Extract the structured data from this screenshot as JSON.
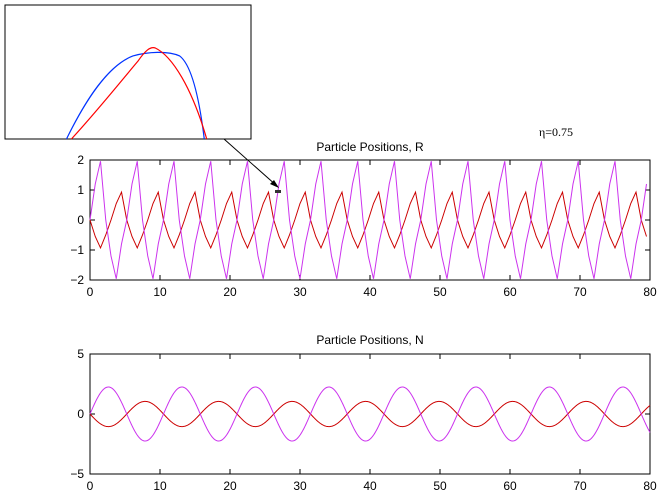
{
  "chart_data": [
    {
      "type": "line",
      "title": "Particle Positions, R",
      "xlim": [
        0,
        80
      ],
      "ylim": [
        -2,
        2
      ],
      "xticks": [
        "0",
        "10",
        "20",
        "30",
        "40",
        "50",
        "60",
        "70",
        "80"
      ],
      "yticks": [
        "2",
        "1",
        "0",
        "−1",
        "−2"
      ],
      "grid": false,
      "period": 5.25,
      "series": [
        {
          "color": "#cc0000",
          "shape": "sawtooth",
          "values": [
            0.0,
            -0.55,
            -0.93,
            -0.5,
            0.0,
            0.55,
            0.93,
            0.0
          ]
        },
        {
          "color": "#cc33ee",
          "shape": "sawtooth",
          "values": [
            0.0,
            1.2,
            1.96,
            0.0,
            -1.2,
            -1.96,
            -0.8,
            0.0
          ]
        }
      ]
    },
    {
      "type": "line",
      "title": "Particle Positions, N",
      "xlim": [
        0,
        80
      ],
      "ylim": [
        -5,
        5
      ],
      "xticks": [
        "0",
        "10",
        "20",
        "30",
        "40",
        "50",
        "60",
        "70",
        "80"
      ],
      "yticks": [
        "5",
        "0",
        "−5"
      ],
      "grid": false,
      "period": 10.5,
      "series": [
        {
          "color": "#cc0000",
          "shape": "sine",
          "amplitude": -1.05
        },
        {
          "color": "#cc33ee",
          "shape": "sine",
          "amplitude": 2.25
        }
      ]
    },
    {
      "type": "line",
      "title": "",
      "inset": true,
      "series": [
        {
          "color": "#0033ff",
          "shape": "flat-top"
        },
        {
          "color": "#ff0000",
          "shape": "peak"
        }
      ]
    }
  ],
  "annotation": {
    "text": "η=0.75"
  },
  "colors": {
    "axis": "#000000",
    "background": "#ffffff"
  }
}
